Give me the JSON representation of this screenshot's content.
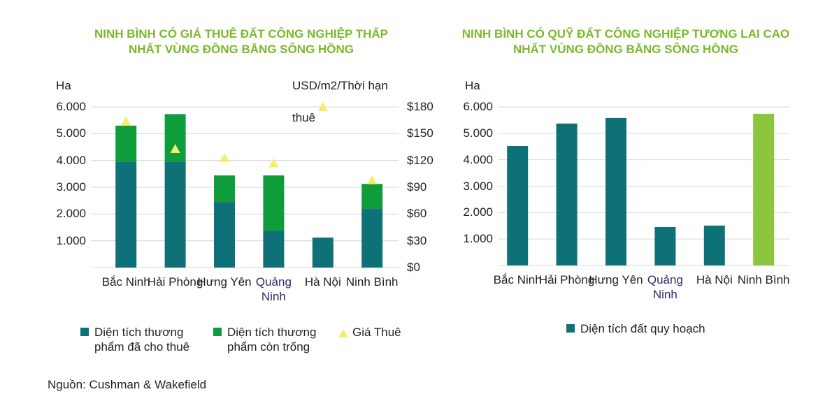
{
  "chart_data": [
    {
      "type": "bar",
      "stacked": true,
      "title": "NINH BÌNH CÓ GIÁ THUÊ ĐẤT CÔNG NGHIỆP THẤP NHẤT VÙNG ĐỒNG BẰNG SÔNG HỒNG",
      "y_label": "Ha",
      "y2_label": [
        "USD/m2/Thời hạn",
        "thuê"
      ],
      "categories": [
        "Bắc Ninh",
        "Hải Phòng",
        "Hưng Yên",
        "Quảng Ninh",
        "Hà Nội",
        "Ninh Bình"
      ],
      "category_colors": [
        "#222222",
        "#222222",
        "#222222",
        "#2e2c6e",
        "#222222",
        "#222222"
      ],
      "series": [
        {
          "name": "Diện tích thương phẩm đã cho thuê",
          "color": "#0e7178",
          "values": [
            3950,
            3950,
            2450,
            1380,
            1120,
            2190
          ]
        },
        {
          "name": "Diện tích thương phẩm còn trống",
          "color": "#0f9d3c",
          "values": [
            1350,
            1780,
            990,
            2060,
            0,
            935
          ]
        },
        {
          "name": "Giá Thuê",
          "type": "scatter",
          "marker": "triangle",
          "axis": "y2",
          "color": "#f3ef6a",
          "values": [
            164,
            133,
            123,
            117,
            180,
            98
          ]
        }
      ],
      "ylim": [
        0,
        6000
      ],
      "yticks": [
        {
          "value": 1000,
          "label": "1.000"
        },
        {
          "value": 2000,
          "label": "2.000"
        },
        {
          "value": 3000,
          "label": "3.000"
        },
        {
          "value": 4000,
          "label": "4.000"
        },
        {
          "value": 5000,
          "label": "5.000"
        },
        {
          "value": 6000,
          "label": "6.000"
        }
      ],
      "y2lim": [
        0,
        180
      ],
      "y2ticks": [
        {
          "value": 0,
          "label": "$0"
        },
        {
          "value": 30,
          "label": "$30"
        },
        {
          "value": 60,
          "label": "$60"
        },
        {
          "value": 90,
          "label": "$90"
        },
        {
          "value": 120,
          "label": "$120"
        },
        {
          "value": 150,
          "label": "$150"
        },
        {
          "value": 180,
          "label": "$180"
        }
      ],
      "grid": true
    },
    {
      "type": "bar",
      "title": "NINH BÌNH CÓ QUỸ ĐẤT CÔNG NGHIỆP TƯƠNG LAI CAO NHẤT VÙNG ĐỒNG BẰNG SÔNG HỒNG",
      "y_label": "Ha",
      "categories": [
        "Bắc Ninh",
        "Hải Phòng",
        "Hưng Yên",
        "Quảng Ninh",
        "Hà Nội",
        "Ninh Bình"
      ],
      "category_colors": [
        "#222222",
        "#222222",
        "#222222",
        "#2e2c6e",
        "#222222",
        "#222222"
      ],
      "series": [
        {
          "name": "Diện tích đất quy hoạch",
          "color": "#0e7178",
          "bar_colors": [
            "#0e7178",
            "#0e7178",
            "#0e7178",
            "#0e7178",
            "#0e7178",
            "#8cc63f"
          ],
          "values": [
            4520,
            5370,
            5580,
            1455,
            1510,
            5740
          ]
        }
      ],
      "ylim": [
        0,
        6000
      ],
      "yticks": [
        {
          "value": 1000,
          "label": "1.000"
        },
        {
          "value": 2000,
          "label": "2.000"
        },
        {
          "value": 3000,
          "label": "3.000"
        },
        {
          "value": 4000,
          "label": "4.000"
        },
        {
          "value": 5000,
          "label": "5.000"
        },
        {
          "value": 6000,
          "label": "6.000"
        }
      ],
      "grid": true
    }
  ],
  "source": "Nguồn: Cushman & Wakefield"
}
